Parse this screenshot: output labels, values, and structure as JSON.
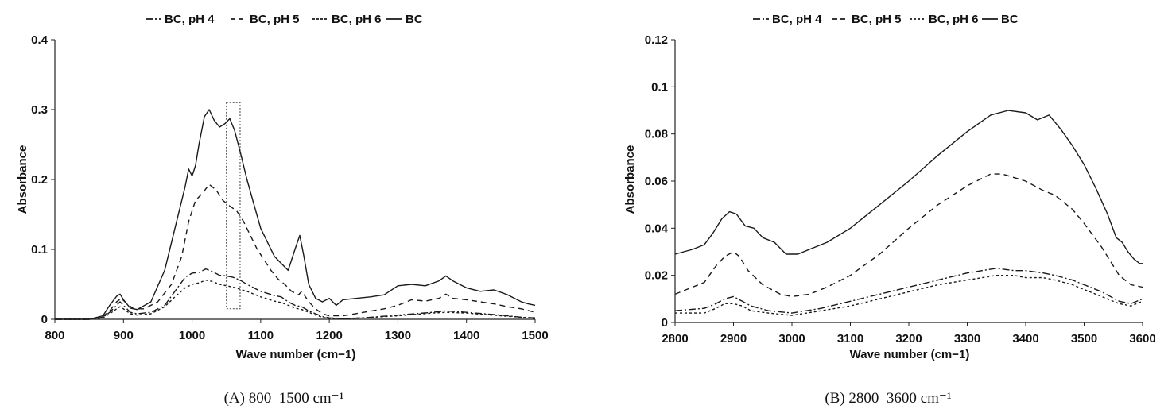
{
  "chart_data": [
    {
      "type": "line",
      "caption": "(A) 800–1500 cm⁻¹",
      "xlabel": "Wave number (cm−1)",
      "ylabel": "Absorbance",
      "xlim": [
        800,
        1500
      ],
      "ylim": [
        0,
        0.4
      ],
      "xticks": [
        "800",
        "900",
        "1000",
        "1100",
        "1200",
        "1300",
        "1400",
        "1500"
      ],
      "yticks": [
        "0",
        "0.1",
        "0.2",
        "0.3",
        "0.4"
      ],
      "grid": false,
      "legend_position": "top",
      "highlight_box": {
        "x": [
          1050,
          1070
        ],
        "y": [
          0.015,
          0.31
        ]
      },
      "series": [
        {
          "name": "BC, pH 4",
          "dash": "dashdot",
          "color": "#1a1a1a",
          "x": [
            800,
            850,
            870,
            880,
            890,
            895,
            900,
            910,
            920,
            940,
            960,
            975,
            990,
            1000,
            1010,
            1020,
            1030,
            1040,
            1050,
            1060,
            1070,
            1080,
            1090,
            1100,
            1110,
            1120,
            1130,
            1140,
            1150,
            1160,
            1170,
            1180,
            1190,
            1200,
            1220,
            1250,
            1300,
            1350,
            1370,
            1400,
            1450,
            1480,
            1500
          ],
          "y": [
            0,
            0,
            0.003,
            0.01,
            0.02,
            0.025,
            0.02,
            0.01,
            0.008,
            0.01,
            0.02,
            0.04,
            0.06,
            0.066,
            0.067,
            0.072,
            0.068,
            0.063,
            0.062,
            0.06,
            0.056,
            0.05,
            0.045,
            0.04,
            0.037,
            0.034,
            0.032,
            0.025,
            0.02,
            0.018,
            0.012,
            0.008,
            0.004,
            0.002,
            0.001,
            0.002,
            0.006,
            0.01,
            0.012,
            0.01,
            0.006,
            0.003,
            0.002
          ]
        },
        {
          "name": "BC, pH 5",
          "dash": "dash",
          "color": "#1a1a1a",
          "x": [
            800,
            850,
            870,
            880,
            890,
            897,
            905,
            915,
            930,
            950,
            970,
            985,
            995,
            1005,
            1015,
            1025,
            1035,
            1045,
            1055,
            1065,
            1075,
            1085,
            1095,
            1105,
            1115,
            1125,
            1135,
            1145,
            1155,
            1160,
            1170,
            1180,
            1190,
            1200,
            1220,
            1250,
            1280,
            1300,
            1320,
            1340,
            1360,
            1370,
            1380,
            1400,
            1420,
            1440,
            1460,
            1480,
            1500
          ],
          "y": [
            0,
            0,
            0.004,
            0.012,
            0.025,
            0.03,
            0.022,
            0.015,
            0.015,
            0.025,
            0.05,
            0.09,
            0.14,
            0.17,
            0.18,
            0.193,
            0.185,
            0.17,
            0.162,
            0.155,
            0.14,
            0.12,
            0.1,
            0.085,
            0.07,
            0.058,
            0.05,
            0.04,
            0.035,
            0.04,
            0.025,
            0.015,
            0.008,
            0.005,
            0.005,
            0.01,
            0.015,
            0.02,
            0.028,
            0.026,
            0.03,
            0.036,
            0.03,
            0.028,
            0.025,
            0.022,
            0.018,
            0.015,
            0.01
          ]
        },
        {
          "name": "BC, pH 6",
          "dash": "dot",
          "color": "#1a1a1a",
          "x": [
            800,
            850,
            870,
            880,
            890,
            895,
            900,
            910,
            920,
            940,
            960,
            975,
            990,
            1000,
            1010,
            1020,
            1030,
            1040,
            1050,
            1060,
            1070,
            1080,
            1090,
            1100,
            1110,
            1120,
            1130,
            1140,
            1150,
            1160,
            1170,
            1180,
            1190,
            1200,
            1220,
            1250,
            1300,
            1350,
            1370,
            1400,
            1450,
            1480,
            1500
          ],
          "y": [
            0,
            0,
            0.002,
            0.008,
            0.015,
            0.018,
            0.015,
            0.008,
            0.006,
            0.008,
            0.018,
            0.032,
            0.045,
            0.05,
            0.052,
            0.056,
            0.054,
            0.05,
            0.048,
            0.046,
            0.043,
            0.04,
            0.036,
            0.032,
            0.029,
            0.026,
            0.024,
            0.02,
            0.016,
            0.014,
            0.01,
            0.006,
            0.003,
            0.001,
            0.001,
            0.002,
            0.005,
            0.009,
            0.01,
            0.009,
            0.005,
            0.003,
            0.001
          ]
        },
        {
          "name": "BC",
          "dash": "solid",
          "color": "#1a1a1a",
          "x": [
            800,
            850,
            870,
            880,
            890,
            895,
            900,
            910,
            920,
            940,
            960,
            975,
            990,
            995,
            1000,
            1005,
            1010,
            1018,
            1025,
            1032,
            1040,
            1048,
            1055,
            1062,
            1070,
            1080,
            1090,
            1100,
            1110,
            1120,
            1130,
            1140,
            1150,
            1157,
            1163,
            1170,
            1180,
            1190,
            1200,
            1210,
            1220,
            1240,
            1260,
            1280,
            1300,
            1320,
            1340,
            1360,
            1370,
            1380,
            1400,
            1420,
            1440,
            1460,
            1470,
            1480,
            1490,
            1500
          ],
          "y": [
            0,
            0,
            0.005,
            0.02,
            0.033,
            0.036,
            0.028,
            0.016,
            0.014,
            0.025,
            0.07,
            0.13,
            0.19,
            0.215,
            0.205,
            0.22,
            0.25,
            0.29,
            0.3,
            0.285,
            0.275,
            0.28,
            0.287,
            0.27,
            0.24,
            0.2,
            0.165,
            0.13,
            0.11,
            0.09,
            0.08,
            0.07,
            0.1,
            0.12,
            0.09,
            0.05,
            0.03,
            0.025,
            0.03,
            0.02,
            0.028,
            0.03,
            0.032,
            0.035,
            0.048,
            0.05,
            0.048,
            0.055,
            0.062,
            0.055,
            0.045,
            0.04,
            0.042,
            0.035,
            0.03,
            0.025,
            0.022,
            0.02
          ]
        }
      ]
    },
    {
      "type": "line",
      "caption": "(B) 2800–3600 cm⁻¹",
      "xlabel": "Wave number (cm−1)",
      "ylabel": "Absorbance",
      "xlim": [
        2800,
        3600
      ],
      "ylim": [
        0,
        0.12
      ],
      "xticks": [
        "2800",
        "2900",
        "3000",
        "3100",
        "3200",
        "3300",
        "3400",
        "3500",
        "3600"
      ],
      "yticks": [
        "0",
        "0.02",
        "0.04",
        "0.06",
        "0.08",
        "0.1",
        "0.12"
      ],
      "grid": false,
      "legend_position": "top",
      "series": [
        {
          "name": "BC, pH 4",
          "dash": "dashdot",
          "color": "#1a1a1a",
          "x": [
            2800,
            2850,
            2870,
            2885,
            2900,
            2915,
            2930,
            2960,
            3000,
            3050,
            3100,
            3150,
            3200,
            3250,
            3300,
            3350,
            3380,
            3400,
            3430,
            3450,
            3480,
            3500,
            3530,
            3560,
            3580,
            3600
          ],
          "y": [
            0.005,
            0.006,
            0.008,
            0.01,
            0.011,
            0.009,
            0.007,
            0.005,
            0.004,
            0.006,
            0.009,
            0.012,
            0.015,
            0.018,
            0.021,
            0.023,
            0.022,
            0.022,
            0.021,
            0.02,
            0.018,
            0.016,
            0.013,
            0.009,
            0.008,
            0.01
          ]
        },
        {
          "name": "BC, pH 5",
          "dash": "dash",
          "color": "#1a1a1a",
          "x": [
            2800,
            2830,
            2850,
            2870,
            2885,
            2900,
            2910,
            2925,
            2950,
            2980,
            3000,
            3030,
            3060,
            3100,
            3150,
            3200,
            3250,
            3300,
            3340,
            3360,
            3400,
            3430,
            3450,
            3480,
            3500,
            3530,
            3560,
            3580,
            3600
          ],
          "y": [
            0.012,
            0.015,
            0.017,
            0.024,
            0.028,
            0.03,
            0.028,
            0.022,
            0.016,
            0.012,
            0.011,
            0.012,
            0.015,
            0.02,
            0.029,
            0.04,
            0.05,
            0.058,
            0.063,
            0.063,
            0.06,
            0.056,
            0.054,
            0.048,
            0.042,
            0.032,
            0.02,
            0.016,
            0.015
          ]
        },
        {
          "name": "BC, pH 6",
          "dash": "dot",
          "color": "#1a1a1a",
          "x": [
            2800,
            2850,
            2870,
            2885,
            2900,
            2915,
            2930,
            2960,
            3000,
            3050,
            3100,
            3150,
            3200,
            3250,
            3300,
            3350,
            3380,
            3400,
            3430,
            3450,
            3480,
            3500,
            3530,
            3560,
            3580,
            3600
          ],
          "y": [
            0.004,
            0.004,
            0.006,
            0.008,
            0.008,
            0.007,
            0.005,
            0.004,
            0.003,
            0.005,
            0.007,
            0.01,
            0.013,
            0.016,
            0.018,
            0.02,
            0.02,
            0.019,
            0.019,
            0.018,
            0.016,
            0.014,
            0.011,
            0.008,
            0.007,
            0.009
          ]
        },
        {
          "name": "BC",
          "dash": "solid",
          "color": "#1a1a1a",
          "x": [
            2800,
            2830,
            2850,
            2865,
            2880,
            2893,
            2905,
            2920,
            2935,
            2950,
            2970,
            2990,
            3010,
            3030,
            3060,
            3100,
            3150,
            3200,
            3250,
            3300,
            3340,
            3370,
            3400,
            3420,
            3440,
            3460,
            3480,
            3500,
            3520,
            3540,
            3555,
            3565,
            3575,
            3585,
            3595,
            3600
          ],
          "y": [
            0.029,
            0.031,
            0.033,
            0.038,
            0.044,
            0.047,
            0.046,
            0.041,
            0.04,
            0.036,
            0.034,
            0.029,
            0.029,
            0.031,
            0.034,
            0.04,
            0.05,
            0.06,
            0.071,
            0.081,
            0.088,
            0.09,
            0.089,
            0.086,
            0.088,
            0.082,
            0.075,
            0.067,
            0.057,
            0.046,
            0.036,
            0.034,
            0.03,
            0.027,
            0.025,
            0.025
          ]
        }
      ]
    }
  ]
}
